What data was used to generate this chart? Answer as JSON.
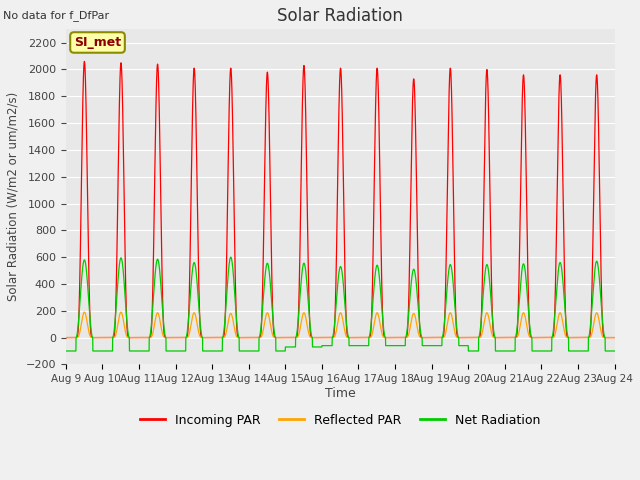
{
  "title": "Solar Radiation",
  "note": "No data for f_DfPar",
  "ylabel": "Solar Radiation (W/m2 or um/m2/s)",
  "xlabel": "Time",
  "ylim": [
    -200,
    2300
  ],
  "yticks": [
    -200,
    0,
    200,
    400,
    600,
    800,
    1000,
    1200,
    1400,
    1600,
    1800,
    2000,
    2200
  ],
  "x_tick_labels": [
    "Aug 9",
    "Aug 10",
    "Aug 11",
    "Aug 12",
    "Aug 13",
    "Aug 14",
    "Aug 15",
    "Aug 16",
    "Aug 17",
    "Aug 18",
    "Aug 19",
    "Aug 20",
    "Aug 21",
    "Aug 22",
    "Aug 23",
    "Aug 24"
  ],
  "legend_labels": [
    "Incoming PAR",
    "Reflected PAR",
    "Net Radiation"
  ],
  "site_label": "SI_met",
  "n_days": 15,
  "incoming_peak": [
    2060,
    2050,
    2040,
    2010,
    2010,
    1980,
    2030,
    2010,
    2010,
    1930,
    2010,
    2000,
    1960,
    1960,
    1960
  ],
  "reflected_peak": [
    190,
    190,
    185,
    185,
    180,
    185,
    185,
    185,
    185,
    180,
    185,
    185,
    185,
    185,
    185
  ],
  "net_peak": [
    580,
    595,
    585,
    560,
    600,
    555,
    555,
    530,
    540,
    510,
    545,
    545,
    550,
    560,
    570
  ],
  "net_trough": [
    -100,
    -100,
    -100,
    -100,
    -100,
    -100,
    -70,
    -60,
    -60,
    -60,
    -60,
    -100,
    -100,
    -100,
    -100
  ],
  "bg_color": "#f0f0f0",
  "plot_bg": "#e8e8e8",
  "line_color_incoming": "#ff0000",
  "line_color_reflected": "#ffa500",
  "line_color_net": "#00cc00"
}
